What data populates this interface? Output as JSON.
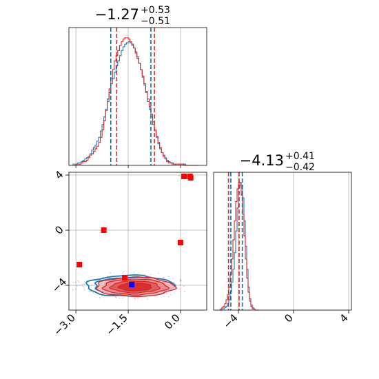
{
  "colors": {
    "series_a": "#1f77b4",
    "series_b": "#d62728",
    "quantile_a": "#0b6e99",
    "quantile_b": "#d62728",
    "grid": "#b0b0b0",
    "truth_marker": "#ff0000",
    "best_marker": "#0000ff"
  },
  "chart_data": [
    {
      "type": "histogram",
      "panel": "param1-marginal",
      "title": {
        "value": "−1.27",
        "plus": "+0.53",
        "minus": "−0.51"
      },
      "xlim": [
        -3.2,
        0.75
      ],
      "grid": true,
      "quantiles": {
        "series_a": [
          -2.0,
          -0.85
        ],
        "series_b": [
          -1.83,
          -0.75
        ]
      },
      "series": [
        {
          "color": "#1f77b4",
          "bin_start": -3.1,
          "bin_width": 0.05,
          "values": [
            1,
            1,
            1,
            2,
            2,
            3,
            4,
            5,
            6,
            7,
            9,
            12,
            14,
            16,
            19,
            22,
            27,
            32,
            38,
            44,
            50,
            57,
            64,
            68,
            73,
            78,
            82,
            86,
            90,
            93,
            95,
            96,
            97,
            96,
            94,
            92,
            89,
            85,
            80,
            75,
            69,
            63,
            57,
            50,
            44,
            38,
            32,
            27,
            22,
            17,
            13,
            10,
            8,
            6,
            4,
            3,
            2,
            2,
            1,
            1,
            1,
            1,
            1,
            1,
            1,
            0,
            0,
            0,
            0,
            0,
            0,
            0
          ]
        },
        {
          "color": "#d62728",
          "bin_start": -3.1,
          "bin_width": 0.05,
          "values": [
            0,
            0,
            1,
            1,
            1,
            2,
            3,
            3,
            4,
            6,
            8,
            9,
            11,
            13,
            15,
            18,
            22,
            28,
            35,
            43,
            52,
            60,
            68,
            75,
            82,
            86,
            90,
            94,
            97,
            99,
            100,
            100,
            99,
            97,
            95,
            92,
            88,
            84,
            80,
            75,
            70,
            64,
            58,
            52,
            46,
            40,
            34,
            28,
            23,
            18,
            14,
            10,
            7,
            5,
            3,
            2,
            2,
            1,
            1,
            1,
            1,
            1,
            1,
            1,
            0,
            0,
            0,
            0,
            0,
            0,
            0,
            0
          ]
        }
      ]
    },
    {
      "type": "histogram",
      "panel": "param2-marginal",
      "title": {
        "value": "−4.13",
        "plus": "+0.41",
        "minus": "−0.42"
      },
      "xlim": [
        -5.8,
        4.2
      ],
      "xticks": [
        -4,
        0,
        4
      ],
      "xtick_labels": [
        "−4",
        "0",
        "4"
      ],
      "grid": true,
      "quantiles": {
        "series_a": [
          -4.55,
          -3.72
        ],
        "series_b": [
          -4.72,
          -3.95
        ]
      },
      "series": [
        {
          "color": "#1f77b4",
          "bin_start": -5.4,
          "bin_width": 0.1,
          "values": [
            0,
            0,
            1,
            1,
            2,
            3,
            5,
            8,
            14,
            22,
            32,
            45,
            62,
            80,
            96,
            100,
            98,
            88,
            70,
            50,
            32,
            18,
            9,
            4,
            2,
            1,
            0,
            0,
            0
          ]
        },
        {
          "color": "#d62728",
          "bin_start": -5.4,
          "bin_width": 0.1,
          "values": [
            0,
            1,
            2,
            3,
            5,
            8,
            12,
            18,
            28,
            40,
            55,
            70,
            85,
            95,
            100,
            98,
            90,
            75,
            58,
            40,
            25,
            14,
            7,
            3,
            1,
            1,
            0,
            0,
            0
          ]
        }
      ]
    },
    {
      "type": "contour",
      "panel": "param1-vs-param2",
      "xlim": [
        -3.2,
        0.75
      ],
      "ylim": [
        -5.8,
        4.2
      ],
      "xticks": [
        -3.0,
        -1.5,
        0.0
      ],
      "xtick_labels": [
        "−3.0",
        "−1.5",
        "0.0"
      ],
      "yticks": [
        -4,
        0,
        4
      ],
      "ytick_labels": [
        "−4",
        "0",
        "4"
      ],
      "grid": true,
      "contours": [
        {
          "color": "#1f77b4",
          "cx": -1.45,
          "cy": -4.05,
          "sx": 0.62,
          "sy": 0.38,
          "levels": [
            1.0,
            0.82,
            0.62,
            0.42
          ]
        },
        {
          "color": "#d62728",
          "cx": -1.3,
          "cy": -4.12,
          "sx": 0.56,
          "sy": 0.34,
          "levels": [
            1.0,
            0.82,
            0.62,
            0.42
          ]
        }
      ],
      "points": [
        {
          "x": -2.9,
          "y": -2.5,
          "color": "#ff0000"
        },
        {
          "x": -2.2,
          "y": 0.0,
          "color": "#ff0000"
        },
        {
          "x": -1.6,
          "y": -3.45,
          "color": "#ff0000"
        },
        {
          "x": 0.0,
          "y": -0.9,
          "color": "#ff0000"
        },
        {
          "x": 0.1,
          "y": 3.9,
          "color": "#ff0000"
        },
        {
          "x": 0.27,
          "y": 3.9,
          "color": "#ff0000"
        },
        {
          "x": 0.29,
          "y": 3.8,
          "color": "#ff0000"
        },
        {
          "x": -1.4,
          "y": -3.95,
          "color": "#0000ff"
        }
      ]
    }
  ]
}
